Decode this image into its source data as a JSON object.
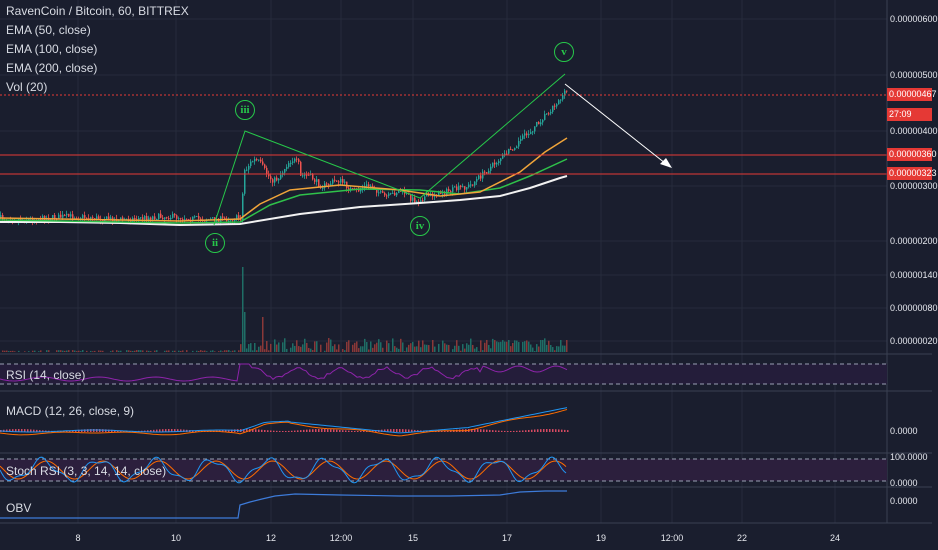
{
  "legend": {
    "symbol": "RavenCoin / Bitcoin, 60, BITTREX",
    "ema50": "EMA (50, close)",
    "ema100": "EMA (100, close)",
    "ema200": "EMA (200, close)",
    "volume": "Vol (20)"
  },
  "panes": {
    "rsi": "RSI (14, close)",
    "macd": "MACD (12, 26, close, 9)",
    "stoch": "Stoch RSI (3, 3, 14, 14, close)",
    "obv": "OBV"
  },
  "price_axis": [
    "0.00000600",
    "0.00000500",
    "0.00000400",
    "0.00000300",
    "0.00000200",
    "0.00000140",
    "0.00000080",
    "0.00000020"
  ],
  "price_tags": {
    "last": "0.00000467",
    "countdown": "27:09",
    "line1": "0.00000360",
    "line2": "0.00000323"
  },
  "indicator_axis": {
    "macd": "0.0000",
    "stoch_top": "100.0000",
    "stoch_bottom": "0.0000",
    "obv": "0.0000"
  },
  "time_axis": [
    "8",
    "10",
    "12",
    "12:00",
    "15",
    "17",
    "19",
    "12:00",
    "22",
    "24"
  ],
  "waves": [
    "ii",
    "iii",
    "iv",
    "v"
  ],
  "colors": {
    "background": "#1a1e2e",
    "up": "#26a69a",
    "down": "#ef5350",
    "ema50": "#f0a43a",
    "ema100": "#2fc14a",
    "ema200": "#f2f2f2",
    "wave": "#27c84a",
    "level_line": "#e53935",
    "rsi": "#8e24aa",
    "macd": "#2196f3",
    "signal": "#ff6d00",
    "obv": "#3d7bd9"
  }
}
